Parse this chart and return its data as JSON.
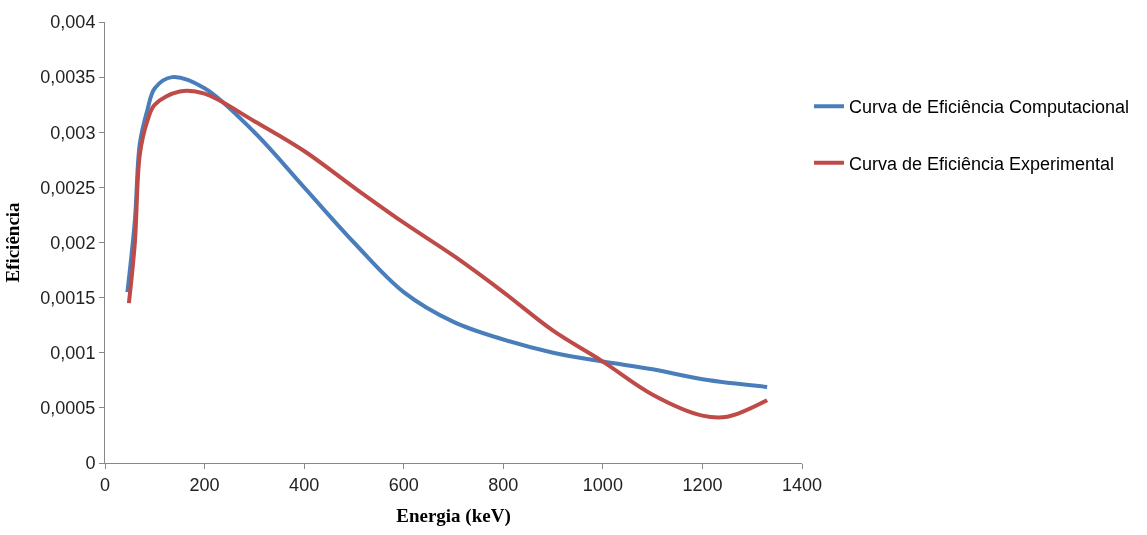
{
  "chart_data": {
    "type": "line",
    "xlabel": "Energia (keV)",
    "ylabel": "Eficiência",
    "xlim": [
      0,
      1400
    ],
    "xticks": [
      0,
      200,
      400,
      600,
      800,
      1000,
      1200,
      1400
    ],
    "ylim": [
      0,
      0.004
    ],
    "yticks": [
      {
        "value": 0,
        "label": "0"
      },
      {
        "value": 0.0005,
        "label": "0,0005"
      },
      {
        "value": 0.001,
        "label": "0,001"
      },
      {
        "value": 0.0015,
        "label": "0,0015"
      },
      {
        "value": 0.002,
        "label": "0,002"
      },
      {
        "value": 0.0025,
        "label": "0,0025"
      },
      {
        "value": 0.003,
        "label": "0,003"
      },
      {
        "value": 0.0035,
        "label": "0,0035"
      },
      {
        "value": 0.004,
        "label": "0,004"
      }
    ],
    "legend": "right",
    "marker": "none",
    "line_style": "solid",
    "series": [
      {
        "name": "Curva de Eficiência Computacional",
        "color": "#4a7ebb",
        "x": [
          45,
          60,
          70,
          85,
          100,
          135,
          200,
          300,
          400,
          500,
          600,
          700,
          800,
          900,
          1000,
          1100,
          1200,
          1330
        ],
        "values": [
          0.00155,
          0.0022,
          0.0029,
          0.0032,
          0.0034,
          0.0035,
          0.0034,
          0.003,
          0.0025,
          0.002,
          0.00155,
          0.00128,
          0.00112,
          0.001,
          0.00092,
          0.00085,
          0.00076,
          0.00069
        ]
      },
      {
        "name": "Curva de Eficiência Experimental",
        "color": "#be4b48",
        "x": [
          48,
          60,
          70,
          85,
          100,
          150,
          200,
          300,
          400,
          500,
          600,
          700,
          800,
          900,
          1000,
          1100,
          1200,
          1250,
          1330
        ],
        "values": [
          0.00145,
          0.002,
          0.0028,
          0.0031,
          0.00325,
          0.00337,
          0.00335,
          0.0031,
          0.00283,
          0.0025,
          0.00218,
          0.00188,
          0.00155,
          0.0012,
          0.00092,
          0.00062,
          0.00043,
          0.00042,
          0.00057
        ]
      }
    ]
  }
}
